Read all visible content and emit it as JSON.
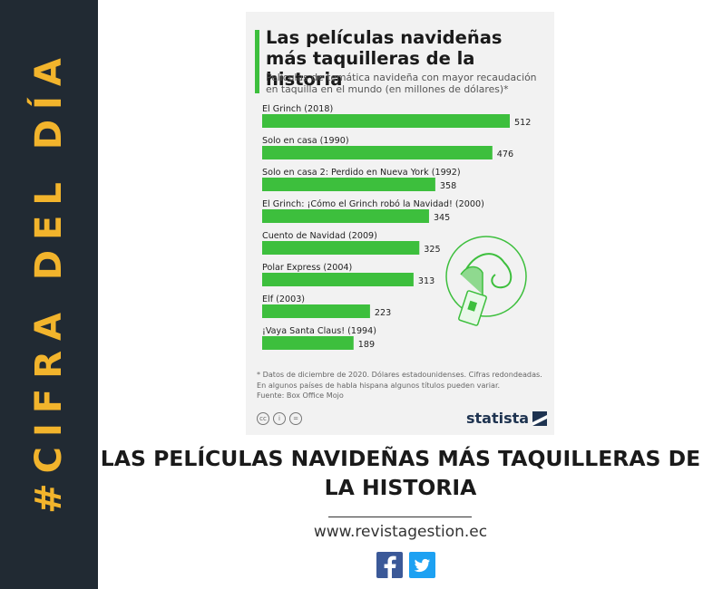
{
  "sidebar": {
    "text": "#CIFRA DEL DÍA"
  },
  "colors": {
    "bar": "#3dbf3d",
    "sidebar_bg": "#212a33",
    "sidebar_text": "#f2b42c",
    "brand": "#1e3350"
  },
  "chart_data": {
    "type": "bar",
    "orientation": "horizontal",
    "title": "Las películas navideñas más taquilleras de la historia",
    "subtitle": "Películas de temática navideña con mayor recaudación en taquilla en el mundo (en millones de dólares)*",
    "categories": [
      "El Grinch (2018)",
      "Solo en casa (1990)",
      "Solo en casa 2: Perdido en Nueva York (1992)",
      "El Grinch: ¡Cómo el Grinch robó la Navidad! (2000)",
      "Cuento de Navidad (2009)",
      "Polar Express (2004)",
      "Elf (2003)",
      "¡Vaya Santa Claus! (1994)"
    ],
    "values": [
      512,
      476,
      358,
      345,
      325,
      313,
      223,
      189
    ],
    "xlim": [
      0,
      512
    ],
    "grid": false,
    "legend": "none"
  },
  "footnote": {
    "line1": "* Datos de diciembre de 2020. Dólares estadounidenses. Cifras redondeadas.",
    "line2": "En algunos países de habla hispana algunos títulos pueden variar.",
    "line3": "Fuente: Box Office Mojo"
  },
  "cc_icons": [
    "cc-icon",
    "person-icon",
    "equals-icon"
  ],
  "brand": {
    "name": "statista"
  },
  "main_title": "LAS PELÍCULAS NAVIDEÑAS MÁS TAQUILLERAS DE LA HISTORIA",
  "site_url": "www.revistagestion.ec",
  "social": [
    "facebook-icon",
    "twitter-icon"
  ]
}
